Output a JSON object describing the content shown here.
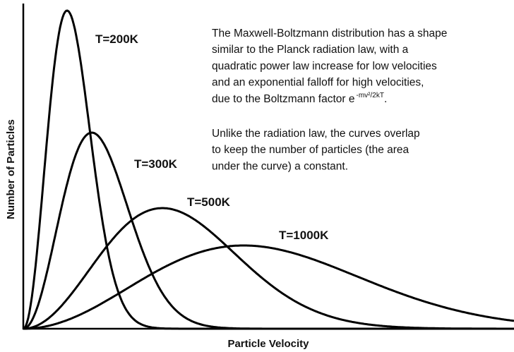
{
  "diagram": {
    "x_axis_label": "Particle Velocity",
    "y_axis_label": "Number of Particles",
    "curve_labels": [
      "T=200K",
      "T=300K",
      "T=500K",
      "T=1000K"
    ],
    "paragraph1": [
      "The Maxwell-Boltzmann distribution has a shape",
      "similar to the Planck radiation law, with a",
      "quadratic power law increase for low velocities",
      "and an exponential falloff for high velocities,",
      "due to the Boltzmann factor e"
    ],
    "exponent": "-mv²/2kT",
    "paragraph1_end": ".",
    "paragraph2": [
      "Unlike the radiation law, the curves overlap",
      "to keep the number of particles (the area",
      "under the curve) a constant."
    ]
  }
}
